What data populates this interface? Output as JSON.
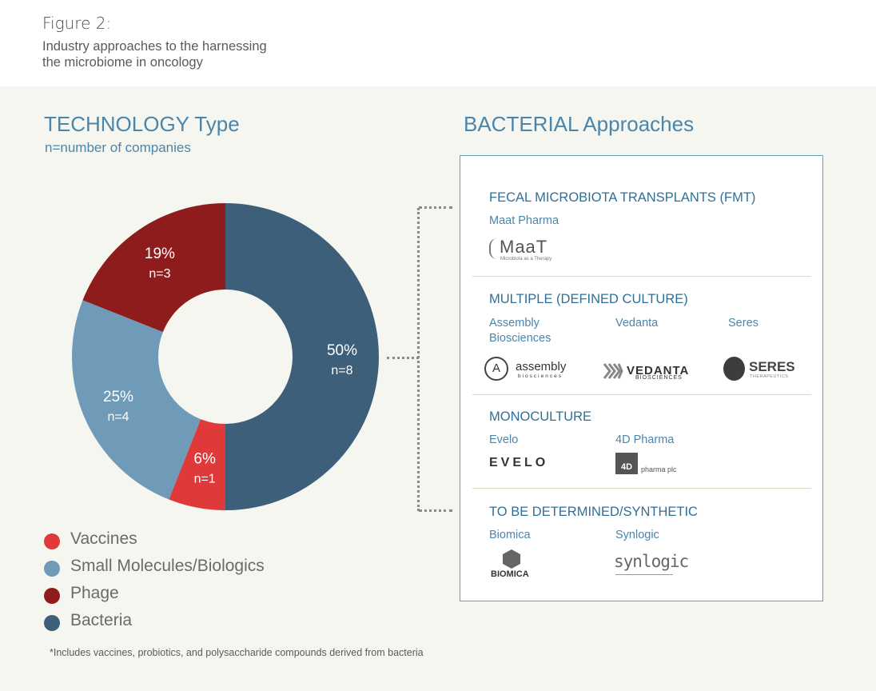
{
  "figure": {
    "label": "Figure 2:",
    "subtitle_line1": "Industry approaches to the harnessing",
    "subtitle_line2": "the microbiome in oncology"
  },
  "technology": {
    "title": "TECHNOLOGY Type",
    "subtitle": "n=number of companies"
  },
  "chart_data": {
    "type": "pie",
    "title": "TECHNOLOGY Type",
    "subtitle": "n=number of companies",
    "donut": true,
    "slices": [
      {
        "name": "Bacteria",
        "percent": 50,
        "n": 8,
        "pct_label": "50%",
        "n_label": "n=8",
        "color": "#3e5f7a"
      },
      {
        "name": "Vaccines",
        "percent": 6,
        "n": 1,
        "pct_label": "6%",
        "n_label": "n=1",
        "color": "#e0393a"
      },
      {
        "name": "Small Molecules/Biologics",
        "percent": 25,
        "n": 4,
        "pct_label": "25%",
        "n_label": "n=4",
        "color": "#6f9ab8"
      },
      {
        "name": "Phage",
        "percent": 19,
        "n": 3,
        "pct_label": "19%",
        "n_label": "n=3",
        "color": "#8e1c1c"
      }
    ],
    "legend": [
      {
        "label": "Vaccines",
        "color": "#e0393a"
      },
      {
        "label": "Small Molecules/Biologics",
        "color": "#6f9ab8"
      },
      {
        "label": "Phage",
        "color": "#8e1c1c"
      },
      {
        "label": "Bacteria",
        "color": "#3e5f7a"
      }
    ],
    "legend_position": "bottom-left"
  },
  "footnote": "*Includes vaccines, probiotics, and polysaccharide compounds derived from bacteria",
  "bacterial": {
    "title": "BACTERIAL Approaches",
    "sections": [
      {
        "title": "FECAL MICROBIOTA TRANSPLANTS (FMT)",
        "companies": [
          "Maat Pharma"
        ]
      },
      {
        "title": "MULTIPLE (DEFINED CULTURE)",
        "companies": [
          "Assembly Biosciences",
          "Vedanta",
          "Seres"
        ]
      },
      {
        "title": "MONOCULTURE",
        "companies": [
          "Evelo",
          "4D Pharma"
        ]
      },
      {
        "title": "TO BE DETERMINED/SYNTHETIC",
        "companies": [
          "Biomica",
          "Synlogic"
        ]
      }
    ]
  },
  "logos": {
    "maat": "MaaT",
    "maat_tagline": "Microbiota as a Therapy",
    "assembly": "assembly",
    "assembly_small": "biosciences",
    "vedanta": "VEDANTA",
    "vedanta_small": "BIOSCIENCES",
    "seres": "SERES",
    "seres_small": "THERAPEUTICS",
    "evelo": "EVELO",
    "fourd": "4D",
    "fourd_small": "pharma plc",
    "biomica": "BIOMICA",
    "synlogic": "synlogic"
  },
  "colors": {
    "accent_blue": "#4a86ab",
    "bacteria": "#3e5f7a",
    "vaccines": "#e0393a",
    "small_molecules": "#6f9ab8",
    "phage": "#8e1c1c"
  }
}
